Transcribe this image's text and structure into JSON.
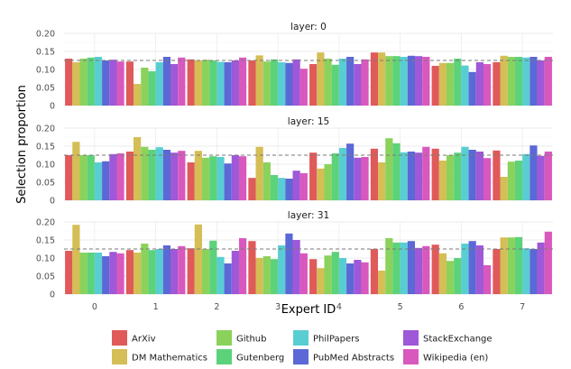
{
  "chart_data": {
    "type": "bar",
    "xlabel": "Expert ID",
    "ylabel": "Selection proportion",
    "ylim": [
      0,
      0.2
    ],
    "yticks": [
      "0",
      "0.05",
      "0.10",
      "0.15",
      "0.20"
    ],
    "reference_line": 0.125,
    "categories": [
      "0",
      "1",
      "2",
      "3",
      "4",
      "5",
      "6",
      "7"
    ],
    "series_names": [
      "ArXiv",
      "DM Mathematics",
      "Github",
      "Gutenberg",
      "PhilPapers",
      "PubMed Abstracts",
      "StackExchange",
      "Wikipedia (en)"
    ],
    "colors": [
      "#E05A5A",
      "#D4BE55",
      "#8BD25C",
      "#5CD27A",
      "#58CED2",
      "#5B68D6",
      "#9E58D8",
      "#D858BE"
    ],
    "legend_position": "bottom",
    "grid": true,
    "panels": [
      {
        "title": "layer: 0",
        "values": [
          [
            0.13,
            0.12,
            0.13,
            0.133,
            0.135,
            0.125,
            0.127,
            0.122
          ],
          [
            0.122,
            0.06,
            0.105,
            0.095,
            0.12,
            0.135,
            0.115,
            0.133
          ],
          [
            0.128,
            0.125,
            0.127,
            0.125,
            0.121,
            0.12,
            0.125,
            0.133
          ],
          [
            0.125,
            0.139,
            0.122,
            0.128,
            0.12,
            0.118,
            0.128,
            0.102
          ],
          [
            0.115,
            0.147,
            0.13,
            0.113,
            0.13,
            0.135,
            0.115,
            0.128
          ],
          [
            0.147,
            0.147,
            0.137,
            0.137,
            0.135,
            0.138,
            0.137,
            0.135
          ],
          [
            0.11,
            0.118,
            0.118,
            0.13,
            0.111,
            0.093,
            0.12,
            0.115
          ],
          [
            0.12,
            0.138,
            0.135,
            0.135,
            0.133,
            0.135,
            0.125,
            0.135
          ]
        ]
      },
      {
        "title": "layer: 15",
        "values": [
          [
            0.125,
            0.162,
            0.125,
            0.125,
            0.105,
            0.108,
            0.128,
            0.13
          ],
          [
            0.135,
            0.175,
            0.148,
            0.14,
            0.147,
            0.14,
            0.132,
            0.137
          ],
          [
            0.105,
            0.137,
            0.118,
            0.122,
            0.12,
            0.102,
            0.125,
            0.122
          ],
          [
            0.062,
            0.148,
            0.105,
            0.07,
            0.062,
            0.06,
            0.082,
            0.075
          ],
          [
            0.132,
            0.088,
            0.1,
            0.13,
            0.145,
            0.157,
            0.118,
            0.12
          ],
          [
            0.143,
            0.105,
            0.172,
            0.158,
            0.133,
            0.135,
            0.132,
            0.148
          ],
          [
            0.143,
            0.11,
            0.125,
            0.132,
            0.148,
            0.14,
            0.135,
            0.117
          ],
          [
            0.138,
            0.065,
            0.107,
            0.11,
            0.128,
            0.152,
            0.123,
            0.135
          ]
        ]
      },
      {
        "title": "layer: 31",
        "values": [
          [
            0.12,
            0.192,
            0.115,
            0.115,
            0.115,
            0.105,
            0.117,
            0.113
          ],
          [
            0.122,
            0.115,
            0.14,
            0.122,
            0.125,
            0.135,
            0.125,
            0.133
          ],
          [
            0.127,
            0.193,
            0.125,
            0.148,
            0.103,
            0.085,
            0.12,
            0.155
          ],
          [
            0.147,
            0.1,
            0.105,
            0.097,
            0.135,
            0.168,
            0.15,
            0.113
          ],
          [
            0.097,
            0.072,
            0.107,
            0.117,
            0.1,
            0.085,
            0.095,
            0.088
          ],
          [
            0.125,
            0.065,
            0.155,
            0.143,
            0.143,
            0.147,
            0.128,
            0.133
          ],
          [
            0.137,
            0.113,
            0.092,
            0.1,
            0.14,
            0.147,
            0.135,
            0.08
          ],
          [
            0.125,
            0.157,
            0.157,
            0.158,
            0.127,
            0.125,
            0.143,
            0.173
          ]
        ]
      }
    ]
  }
}
